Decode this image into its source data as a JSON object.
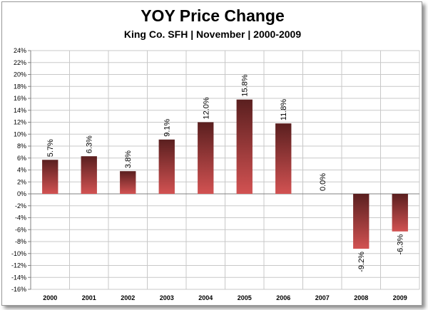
{
  "chart_data": {
    "type": "bar",
    "title": "YOY Price Change",
    "subtitle": "King Co. SFH | November | 2000-2009",
    "categories": [
      "2000",
      "2001",
      "2002",
      "2003",
      "2004",
      "2005",
      "2006",
      "2007",
      "2008",
      "2009"
    ],
    "values": [
      5.7,
      6.3,
      3.8,
      9.1,
      12.0,
      15.8,
      11.8,
      0.0,
      -9.2,
      -6.3
    ],
    "data_labels": [
      "5.7%",
      "6.3%",
      "3.8%",
      "9.1%",
      "12.0%",
      "15.8%",
      "11.8%",
      "0.0%",
      "-9.2%",
      "-6.3%"
    ],
    "yticks": [
      24,
      22,
      20,
      18,
      16,
      14,
      12,
      10,
      8,
      6,
      4,
      2,
      0,
      -2,
      -4,
      -6,
      -8,
      -10,
      -12,
      -14,
      -16
    ],
    "ytick_labels": [
      "24%",
      "22%",
      "20%",
      "18%",
      "16%",
      "14%",
      "12%",
      "10%",
      "8%",
      "6%",
      "4%",
      "2%",
      "0%",
      "-2%",
      "-4%",
      "-6%",
      "-8%",
      "-10%",
      "-12%",
      "-14%",
      "-16%"
    ],
    "ylim": [
      -16,
      24
    ],
    "xlabel": "",
    "ylabel": "",
    "grid": true,
    "colors": {
      "bar_dark": "#5a1f1f",
      "bar_light": "#d25252",
      "grid": "#c8c8c8"
    }
  }
}
